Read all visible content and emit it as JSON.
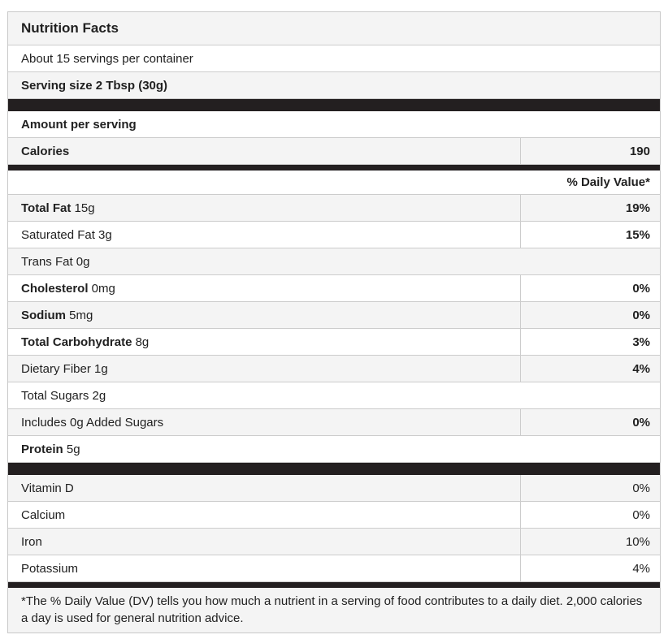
{
  "nutrition_label": {
    "title": "Nutrition Facts",
    "servings_per_container": "About 15 servings per container",
    "serving_size": "Serving size 2 Tbsp (30g)",
    "amount_per_serving_label": "Amount per serving",
    "calories": {
      "label": "Calories",
      "value": "190"
    },
    "daily_value_header": "% Daily Value*",
    "nutrients": [
      {
        "name_bold": "Total Fat",
        "name_rest": " 15g",
        "daily_value": "19%"
      },
      {
        "name_bold": "",
        "name_rest": "Saturated Fat 3g",
        "daily_value": "15%"
      },
      {
        "name_bold": "",
        "name_rest": "Trans Fat 0g",
        "daily_value": ""
      },
      {
        "name_bold": "Cholesterol",
        "name_rest": " 0mg",
        "daily_value": "0%"
      },
      {
        "name_bold": "Sodium",
        "name_rest": " 5mg",
        "daily_value": "0%"
      },
      {
        "name_bold": "Total Carbohydrate",
        "name_rest": " 8g",
        "daily_value": "3%"
      },
      {
        "name_bold": "",
        "name_rest": "Dietary Fiber 1g",
        "daily_value": "4%"
      },
      {
        "name_bold": "",
        "name_rest": "Total Sugars 2g",
        "daily_value": ""
      },
      {
        "name_bold": "",
        "name_rest": "Includes 0g Added Sugars",
        "daily_value": "0%"
      },
      {
        "name_bold": "Protein",
        "name_rest": " 5g",
        "daily_value": ""
      }
    ],
    "vitamins": [
      {
        "name": "Vitamin D",
        "daily_value": "0%"
      },
      {
        "name": "Calcium",
        "daily_value": "0%"
      },
      {
        "name": "Iron",
        "daily_value": "10%"
      },
      {
        "name": "Potassium",
        "daily_value": "4%"
      }
    ],
    "footnote": "*The % Daily Value (DV) tells you how much a nutrient in a serving of food contributes to a daily diet. 2,000 calories a day is used for general nutrition advice."
  },
  "colors": {
    "stripe": "#f4f4f4",
    "border": "#cccccc",
    "separator_bar": "#231f20",
    "text": "#212121"
  }
}
